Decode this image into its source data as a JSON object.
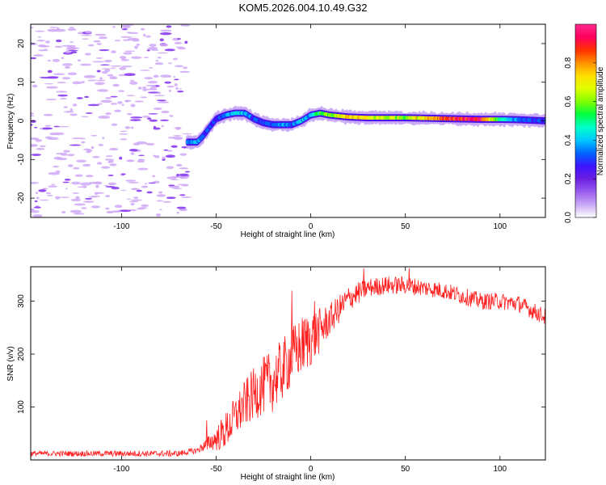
{
  "title": "KOM5.2026.004.10.49.G32",
  "chart_data": [
    {
      "type": "heatmap",
      "name": "spectrogram",
      "xlabel": "Height of straight line (km)",
      "ylabel": "Frequency (Hz)",
      "xlim": [
        -148,
        124
      ],
      "ylim": [
        -25,
        25
      ],
      "xticks": [
        -100,
        -50,
        0,
        50,
        100
      ],
      "yticks": [
        -20,
        -10,
        0,
        10,
        20
      ],
      "colorbar": {
        "label": "Normalized spectral amplitude",
        "range": [
          0,
          1
        ],
        "ticks": [
          0.0,
          0.2,
          0.4,
          0.6,
          0.8
        ],
        "colormap": [
          "#ffffff",
          "#c9a8f5",
          "#9a5cf0",
          "#6a1ee0",
          "#3a14ff",
          "#0066ff",
          "#00c8ff",
          "#00ffc8",
          "#00ff40",
          "#80ff00",
          "#e0ff00",
          "#ffe000",
          "#ff9000",
          "#ff3000",
          "#ff0060",
          "#ff2a8a"
        ]
      },
      "signal_track": {
        "heights": [
          -65,
          -60,
          -57,
          -54,
          -50,
          -45,
          -40,
          -35,
          -30,
          -25,
          -20,
          -15,
          -10,
          -5,
          0,
          5,
          10,
          20,
          30,
          40,
          50,
          60,
          70,
          80,
          90,
          100,
          110,
          124
        ],
        "frequencies": [
          -5.5,
          -5.5,
          -4,
          -2,
          0.5,
          1.5,
          2,
          2,
          0.5,
          -0.5,
          -1,
          -1,
          -1,
          0,
          1.5,
          2,
          1.5,
          1,
          0.8,
          0.8,
          0.8,
          0.7,
          0.6,
          0.5,
          0.4,
          0.4,
          0.3,
          0.0
        ],
        "amplitudes": [
          0.35,
          0.4,
          0.3,
          0.3,
          0.3,
          0.35,
          0.45,
          0.4,
          0.3,
          0.3,
          0.35,
          0.35,
          0.35,
          0.4,
          0.4,
          0.55,
          0.6,
          0.75,
          0.7,
          0.65,
          0.65,
          0.75,
          0.9,
          0.95,
          0.92,
          0.5,
          0.35,
          0.3
        ]
      },
      "noise_region_upper_height": -65
    },
    {
      "type": "line",
      "name": "snr",
      "xlabel": "Height of straight line (km)",
      "ylabel": "SNR (v/v)",
      "xlim": [
        -148,
        124
      ],
      "ylim": [
        0,
        365
      ],
      "xticks": [
        -100,
        -50,
        0,
        50,
        100
      ],
      "yticks": [
        100,
        200,
        300
      ],
      "color": "#ff2020",
      "trend": {
        "x": [
          -148,
          -120,
          -90,
          -70,
          -60,
          -55,
          -50,
          -45,
          -40,
          -35,
          -30,
          -25,
          -20,
          -15,
          -10,
          -5,
          0,
          5,
          10,
          15,
          20,
          25,
          30,
          40,
          50,
          60,
          70,
          80,
          90,
          100,
          110,
          124
        ],
        "y": [
          12,
          12,
          12,
          12,
          18,
          30,
          40,
          55,
          80,
          105,
          125,
          140,
          150,
          170,
          195,
          215,
          230,
          245,
          265,
          285,
          305,
          315,
          325,
          330,
          330,
          325,
          320,
          310,
          300,
          300,
          295,
          270
        ]
      },
      "noise_amplitude": {
        "x": [
          -148,
          -60,
          -55,
          -45,
          -20,
          0,
          10,
          30,
          60,
          124
        ],
        "y": [
          5,
          6,
          12,
          35,
          60,
          55,
          30,
          18,
          16,
          16
        ]
      },
      "spikes": [
        {
          "x": -55,
          "y": 75
        },
        {
          "x": -10,
          "y": 320
        },
        {
          "x": -4,
          "y": 255
        },
        {
          "x": 2,
          "y": 300
        },
        {
          "x": 28,
          "y": 362
        },
        {
          "x": 52,
          "y": 362
        }
      ]
    }
  ]
}
